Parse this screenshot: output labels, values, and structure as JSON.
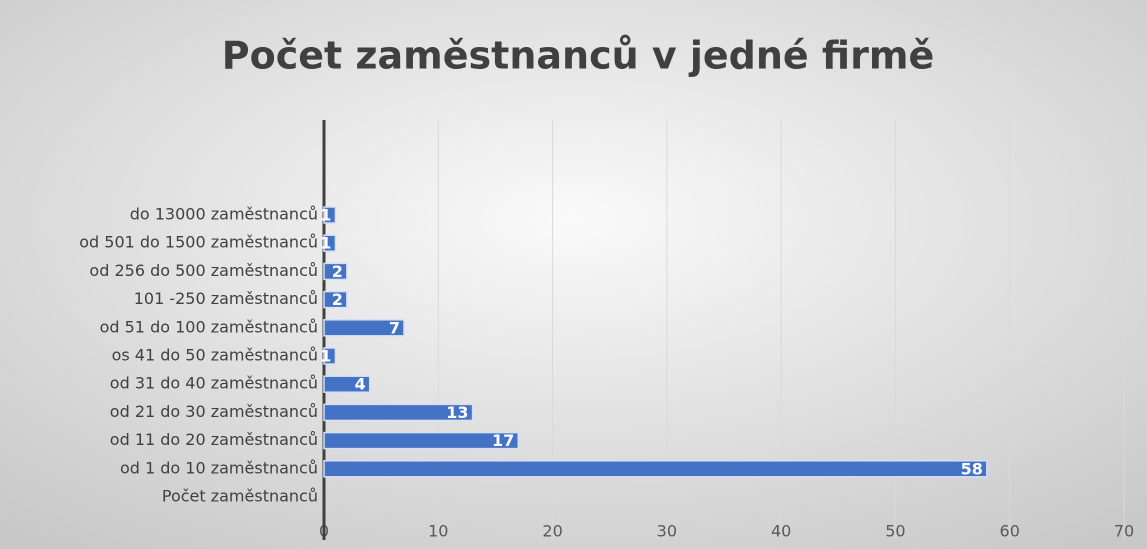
{
  "chart_data": {
    "type": "bar",
    "orientation": "horizontal",
    "title": "Počet zaměstnanců v jedné firmě",
    "categories": [
      "Počet zaměstnanců",
      "od 1 do 10 zaměstnanců",
      "od 11 do 20 zaměstnanců",
      "od 21 do 30 zaměstnanců",
      "od 31 do 40 zaměstnanců",
      "os 41 do 50 zaměstnanců",
      "od 51 do 100 zaměstnanců",
      "101 -250 zaměstnanců",
      "od 256 do 500 zaměstnanců",
      "od 501 do 1500 zaměstnanců",
      "do 13000 zaměstnanců"
    ],
    "values": [
      null,
      58,
      17,
      13,
      4,
      1,
      7,
      2,
      2,
      1,
      1
    ],
    "color": "#4472c4",
    "xlim": [
      0,
      70
    ],
    "xticks": [
      0,
      10,
      20,
      30,
      40,
      50,
      60,
      70
    ],
    "grid": true
  }
}
